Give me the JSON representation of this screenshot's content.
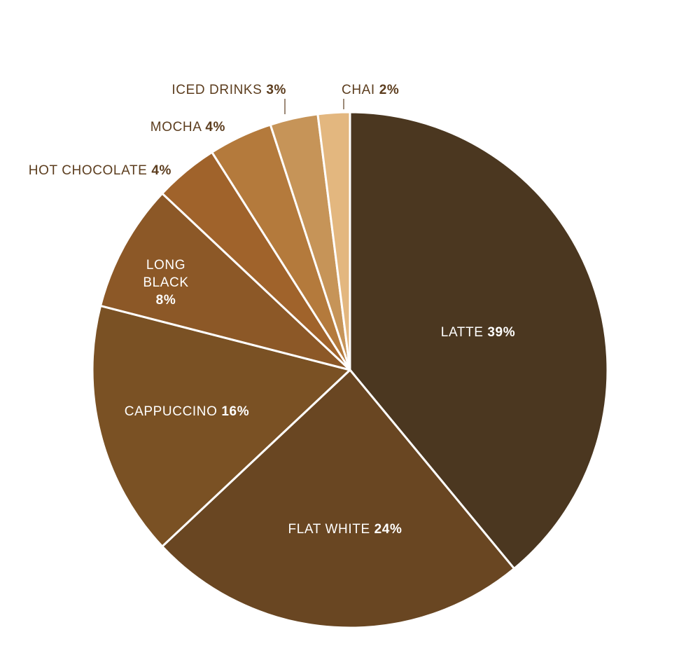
{
  "chart_data": {
    "type": "pie",
    "title": "",
    "slices": [
      {
        "label": "LATTE",
        "value": 39,
        "pct_text": "39%",
        "color": "#4b3720"
      },
      {
        "label": "FLAT WHITE",
        "value": 24,
        "pct_text": "24%",
        "color": "#694622"
      },
      {
        "label": "CAPPUCCINO",
        "value": 16,
        "pct_text": "16%",
        "color": "#7a5124"
      },
      {
        "label": "LONG BLACK",
        "value": 8,
        "pct_text": "8%",
        "color": "#8c5827"
      },
      {
        "label": "HOT CHOCOLATE",
        "value": 4,
        "pct_text": "4%",
        "color": "#a0632b"
      },
      {
        "label": "MOCHA",
        "value": 4,
        "pct_text": "4%",
        "color": "#b47a3c"
      },
      {
        "label": "ICED DRINKS",
        "value": 3,
        "pct_text": "3%",
        "color": "#c69458"
      },
      {
        "label": "CHAI",
        "value": 2,
        "pct_text": "2%",
        "color": "#e3b77f"
      }
    ],
    "label_color_inside": "#ffffff",
    "label_color_outside": "#5c3d1e",
    "background": "#ffffff"
  }
}
